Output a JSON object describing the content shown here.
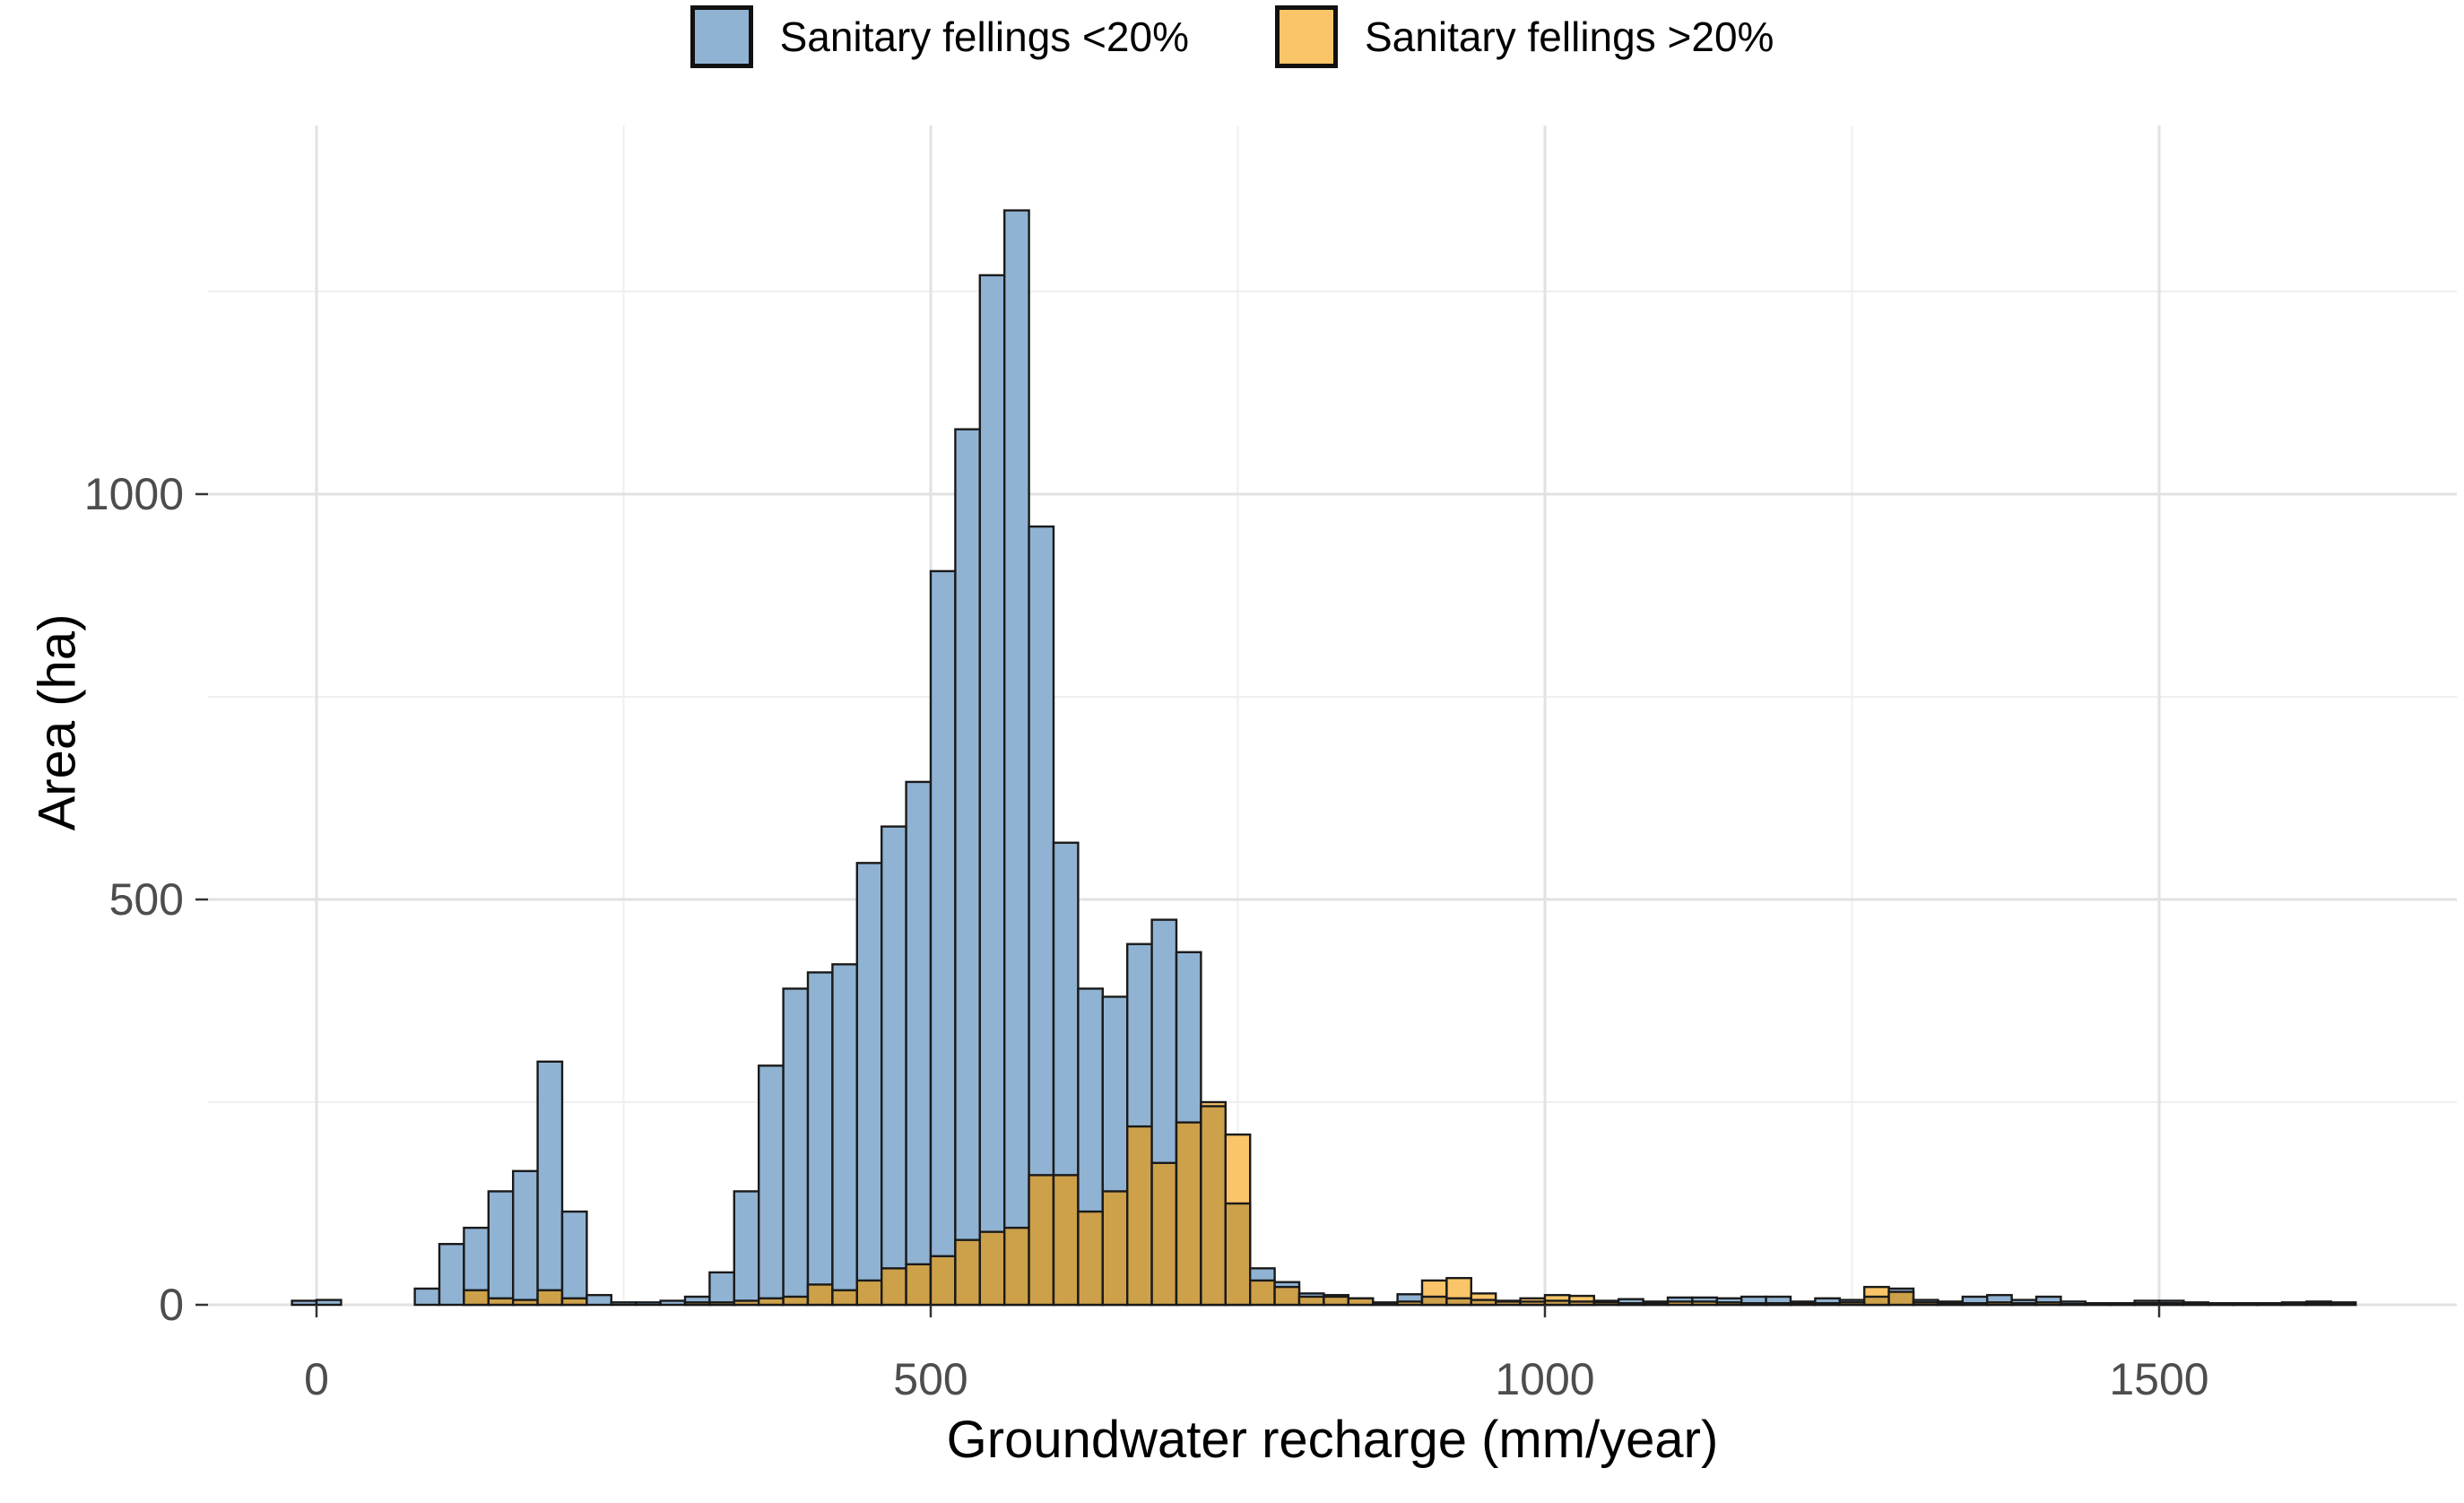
{
  "chart_data": {
    "type": "bar",
    "subtype": "overlaid-histogram",
    "title": "",
    "xlabel": "Groundwater recharge (mm/year)",
    "ylabel": "Area (ha)",
    "x_ticks": [
      0,
      500,
      1000,
      1500
    ],
    "y_ticks": [
      0,
      500,
      1000
    ],
    "x_minor_gridlines": [
      250,
      750,
      1250
    ],
    "y_minor_gridlines": [
      250,
      750,
      1250
    ],
    "xlim": [
      -90,
      1742
    ],
    "ylim": [
      0,
      1454
    ],
    "bin_width": 20,
    "grid": "on",
    "legend_position": "top-center",
    "series": [
      {
        "name": "Sanitary fellings <20%",
        "color": "#90B3D3"
      },
      {
        "name": "Sanitary fellings >20%",
        "color": "#F9C568",
        "overlap_color": "#CDA04A"
      }
    ],
    "bins_note": "each bin = [bin_start_mm_per_year, area_ha_fellings_lt20, area_ha_fellings_gt20]",
    "bins": [
      [
        -20,
        5,
        0
      ],
      [
        0,
        6,
        0
      ],
      [
        80,
        20,
        0
      ],
      [
        100,
        75,
        0
      ],
      [
        120,
        95,
        18
      ],
      [
        140,
        140,
        8
      ],
      [
        160,
        165,
        6
      ],
      [
        180,
        300,
        18
      ],
      [
        200,
        115,
        8
      ],
      [
        220,
        12,
        0
      ],
      [
        240,
        3,
        0
      ],
      [
        260,
        3,
        0
      ],
      [
        280,
        5,
        0
      ],
      [
        300,
        10,
        3
      ],
      [
        320,
        40,
        3
      ],
      [
        340,
        140,
        5
      ],
      [
        360,
        295,
        8
      ],
      [
        380,
        390,
        10
      ],
      [
        400,
        410,
        25
      ],
      [
        420,
        420,
        18
      ],
      [
        440,
        545,
        30
      ],
      [
        460,
        590,
        45
      ],
      [
        480,
        645,
        50
      ],
      [
        500,
        905,
        60
      ],
      [
        520,
        1080,
        80
      ],
      [
        540,
        1270,
        90
      ],
      [
        560,
        1350,
        95
      ],
      [
        580,
        960,
        160
      ],
      [
        600,
        570,
        160
      ],
      [
        620,
        390,
        115
      ],
      [
        640,
        380,
        140
      ],
      [
        660,
        445,
        220
      ],
      [
        680,
        475,
        175
      ],
      [
        700,
        435,
        225
      ],
      [
        720,
        245,
        250
      ],
      [
        740,
        125,
        210
      ],
      [
        760,
        45,
        30
      ],
      [
        780,
        28,
        22
      ],
      [
        800,
        14,
        10
      ],
      [
        820,
        12,
        10
      ],
      [
        840,
        8,
        8
      ],
      [
        860,
        3,
        2
      ],
      [
        880,
        13,
        4
      ],
      [
        900,
        10,
        30
      ],
      [
        920,
        8,
        33
      ],
      [
        940,
        6,
        14
      ],
      [
        960,
        5,
        4
      ],
      [
        980,
        4,
        8
      ],
      [
        1000,
        5,
        12
      ],
      [
        1020,
        4,
        11
      ],
      [
        1040,
        5,
        3
      ],
      [
        1060,
        7,
        2
      ],
      [
        1080,
        4,
        2
      ],
      [
        1100,
        9,
        4
      ],
      [
        1120,
        9,
        4
      ],
      [
        1140,
        8,
        3
      ],
      [
        1160,
        10,
        2
      ],
      [
        1180,
        10,
        2
      ],
      [
        1200,
        4,
        2
      ],
      [
        1220,
        8,
        2
      ],
      [
        1240,
        6,
        3
      ],
      [
        1260,
        10,
        22
      ],
      [
        1280,
        20,
        16
      ],
      [
        1300,
        6,
        3
      ],
      [
        1320,
        4,
        2
      ],
      [
        1340,
        10,
        2
      ],
      [
        1360,
        12,
        3
      ],
      [
        1380,
        6,
        2
      ],
      [
        1400,
        10,
        3
      ],
      [
        1420,
        4,
        1
      ],
      [
        1440,
        2,
        1
      ],
      [
        1460,
        2,
        1
      ],
      [
        1480,
        5,
        2
      ],
      [
        1500,
        5,
        2
      ],
      [
        1520,
        3,
        1
      ],
      [
        1540,
        2,
        1
      ],
      [
        1560,
        2,
        1
      ],
      [
        1580,
        2,
        1
      ],
      [
        1600,
        3,
        1
      ],
      [
        1620,
        4,
        2
      ],
      [
        1640,
        3,
        1
      ]
    ],
    "colors": {
      "bar_outline": "#1A1A1A",
      "grid_major": "#E2E2E2",
      "grid_minor": "#EFEFEF",
      "tick_text": "#4D4D4D",
      "tick_mark": "#333333",
      "background": "#FFFFFF"
    }
  }
}
